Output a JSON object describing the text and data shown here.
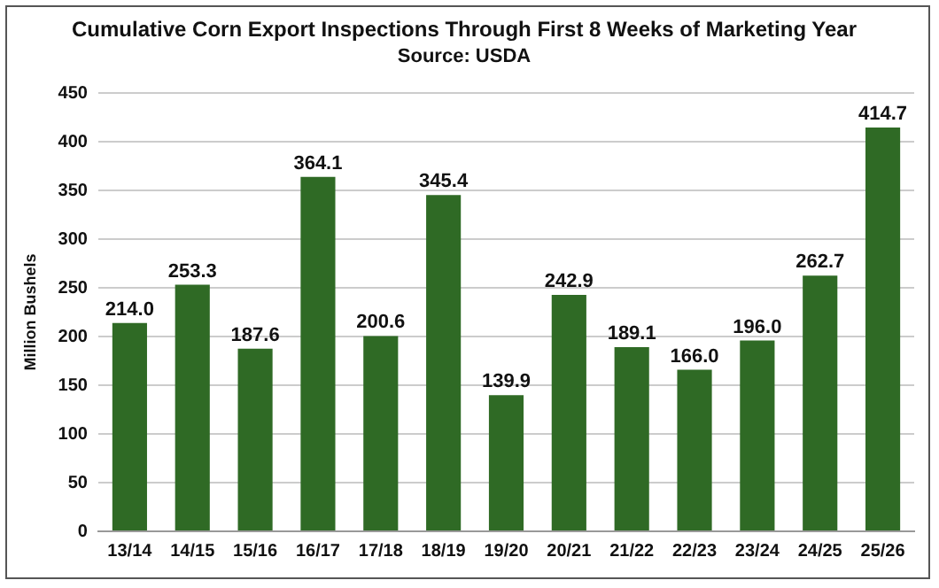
{
  "chart_data": {
    "type": "bar",
    "title": "Cumulative Corn Export Inspections Through First 8 Weeks of Marketing Year",
    "subtitle": "Source: USDA",
    "ylabel": "Million Bushels",
    "categories": [
      "13/14",
      "14/15",
      "15/16",
      "16/17",
      "17/18",
      "18/19",
      "19/20",
      "20/21",
      "21/22",
      "22/23",
      "23/24",
      "24/25",
      "25/26"
    ],
    "values": [
      214.0,
      253.3,
      187.6,
      364.1,
      200.6,
      345.4,
      139.9,
      242.9,
      189.1,
      166.0,
      196.0,
      262.7,
      414.7
    ],
    "value_labels": [
      "214.0",
      "253.3",
      "187.6",
      "364.1",
      "200.6",
      "345.4",
      "139.9",
      "242.9",
      "189.1",
      "166.0",
      "196.0",
      "262.7",
      "414.7"
    ],
    "color": "#2f6a25",
    "ylim": [
      0,
      450
    ],
    "yticks": [
      0,
      50,
      100,
      150,
      200,
      250,
      300,
      350,
      400,
      450
    ],
    "grid": "y",
    "legend": false
  }
}
